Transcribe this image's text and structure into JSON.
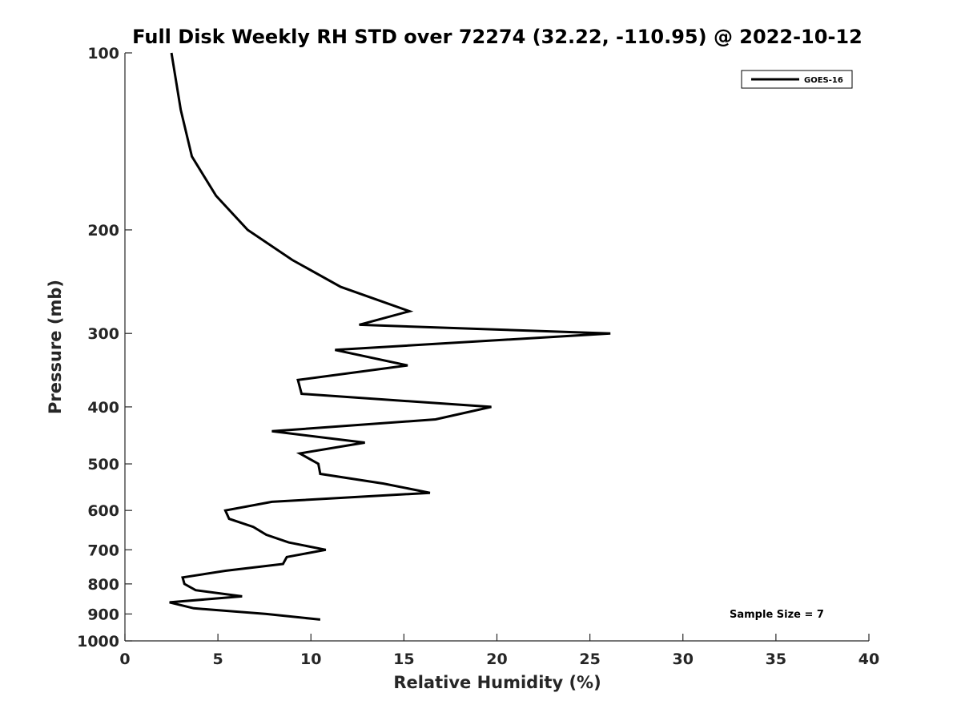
{
  "chart_data": {
    "type": "line",
    "title": "Full Disk Weekly RH STD over 72274 (32.22, -110.95) @ 2022-10-12",
    "xlabel": "Relative Humidity (%)",
    "ylabel": "Pressure (mb)",
    "xlim": [
      0,
      40
    ],
    "ylim": [
      100,
      1000
    ],
    "y_scale": "log",
    "y_reversed": true,
    "x_ticks": [
      "0",
      "5",
      "10",
      "15",
      "20",
      "25",
      "30",
      "35",
      "40"
    ],
    "y_ticks": [
      "100",
      "200",
      "300",
      "400",
      "500",
      "600",
      "700",
      "800",
      "900",
      "1000"
    ],
    "grid": false,
    "legend": {
      "position": "top-right",
      "entries": [
        "GOES-16"
      ]
    },
    "annotations": [
      {
        "text": "Sample Size = 7",
        "position": "bottom-right"
      }
    ],
    "series": [
      {
        "name": "GOES-16",
        "color": "#000000",
        "points": [
          [
            2.5,
            100
          ],
          [
            3.0,
            125
          ],
          [
            3.6,
            150
          ],
          [
            4.9,
            175
          ],
          [
            6.6,
            200
          ],
          [
            9.0,
            225
          ],
          [
            11.6,
            250
          ],
          [
            15.3,
            275
          ],
          [
            12.6,
            290
          ],
          [
            26.1,
            300
          ],
          [
            11.3,
            320
          ],
          [
            15.2,
            340
          ],
          [
            9.3,
            360
          ],
          [
            9.5,
            380
          ],
          [
            19.7,
            400
          ],
          [
            16.7,
            420
          ],
          [
            7.9,
            440
          ],
          [
            12.9,
            460
          ],
          [
            9.4,
            480
          ],
          [
            10.4,
            500
          ],
          [
            10.5,
            520
          ],
          [
            13.9,
            540
          ],
          [
            16.4,
            560
          ],
          [
            7.9,
            580
          ],
          [
            5.4,
            600
          ],
          [
            5.6,
            620
          ],
          [
            6.9,
            640
          ],
          [
            7.6,
            660
          ],
          [
            8.8,
            680
          ],
          [
            10.8,
            700
          ],
          [
            8.7,
            720
          ],
          [
            8.5,
            740
          ],
          [
            5.4,
            760
          ],
          [
            3.1,
            780
          ],
          [
            3.2,
            800
          ],
          [
            3.8,
            820
          ],
          [
            6.3,
            840
          ],
          [
            2.4,
            860
          ],
          [
            3.7,
            880
          ],
          [
            7.6,
            900
          ],
          [
            10.5,
            920
          ]
        ]
      }
    ]
  }
}
